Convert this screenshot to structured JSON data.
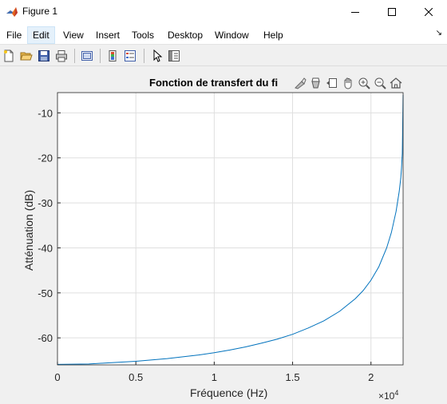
{
  "window": {
    "title": "Figure 1",
    "controls": {
      "minimize": "minimize",
      "maximize": "maximize",
      "close": "close"
    }
  },
  "menu": {
    "items": [
      "File",
      "Edit",
      "View",
      "Insert",
      "Tools",
      "Desktop",
      "Window",
      "Help"
    ],
    "active": "Edit"
  },
  "toolbar": {
    "buttons": [
      "new-figure-icon",
      "open-file-icon",
      "save-icon",
      "print-icon",
      "link-plot-icon",
      "colorbar-icon",
      "legend-icon",
      "pointer-icon",
      "property-inspector-icon"
    ]
  },
  "axes_toolbar": {
    "buttons": [
      "brush-icon",
      "data-tips-icon",
      "export-icon",
      "pan-icon",
      "zoom-in-icon",
      "zoom-out-icon",
      "home-icon"
    ]
  },
  "chart_data": {
    "type": "line",
    "title": "Fonction de transfert du fi",
    "xlabel": "Fréquence (Hz)",
    "ylabel": "Atténuation (dB)",
    "x_exponent_base": "×10",
    "x_exponent_power": "4",
    "xlim": [
      0,
      22050
    ],
    "ylim": [
      -66,
      -5.5
    ],
    "xticks": [
      0,
      5000,
      10000,
      15000,
      20000
    ],
    "xtick_labels": [
      "0",
      "0.5",
      "1",
      "1.5",
      "2"
    ],
    "yticks": [
      -10,
      -20,
      -30,
      -40,
      -50,
      -60
    ],
    "ytick_labels": [
      "-10",
      "-20",
      "-30",
      "-40",
      "-50",
      "-60"
    ],
    "grid": true,
    "series": [
      {
        "color": "#0072bd",
        "x": [
          0,
          2000,
          3000,
          5000,
          7000,
          9000,
          10000,
          11000,
          12000,
          13000,
          14000,
          15000,
          16000,
          17000,
          18000,
          19000,
          19500,
          20000,
          20500,
          21000,
          21300,
          21600,
          21800,
          21900,
          21950,
          22000,
          22050
        ],
        "y": [
          -65.9,
          -65.8,
          -65.6,
          -65.2,
          -64.6,
          -63.8,
          -63.3,
          -62.7,
          -62.0,
          -61.2,
          -60.3,
          -59.2,
          -57.8,
          -56.2,
          -54.1,
          -51.3,
          -49.5,
          -47.2,
          -44.2,
          -40.0,
          -36.6,
          -31.9,
          -27.5,
          -24.5,
          -22.3,
          -19.0,
          -6.0
        ]
      }
    ]
  }
}
